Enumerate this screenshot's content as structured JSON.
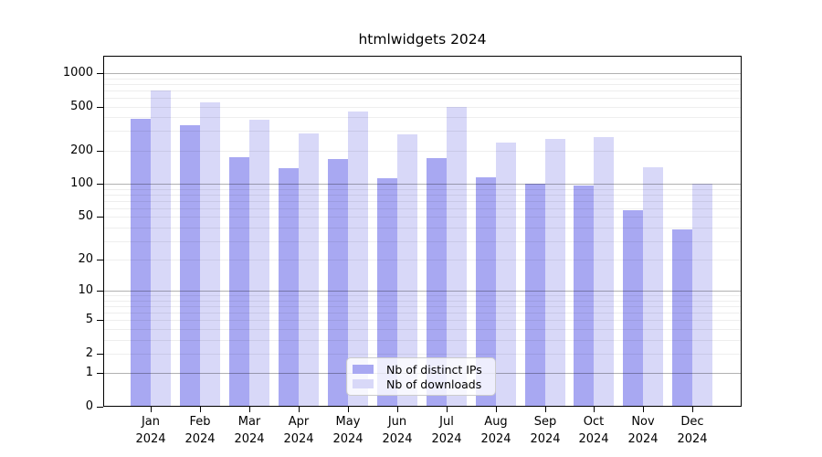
{
  "page": {
    "background": "#ffffff"
  },
  "chart_data": {
    "type": "bar",
    "title": "htmlwidgets 2024",
    "categories": [
      "Jan",
      "Feb",
      "Mar",
      "Apr",
      "May",
      "Jun",
      "Jul",
      "Aug",
      "Sep",
      "Oct",
      "Nov",
      "Dec"
    ],
    "x_year": "2024",
    "series": [
      {
        "name": "Nb of distinct IPs",
        "color": "#a8a8f2",
        "values": [
          390,
          340,
          175,
          140,
          168,
          113,
          170,
          115,
          100,
          96,
          57,
          38
        ]
      },
      {
        "name": "Nb of downloads",
        "color": "#d8d8f8",
        "values": [
          700,
          550,
          380,
          285,
          450,
          280,
          500,
          235,
          255,
          265,
          142,
          101
        ]
      }
    ],
    "y_ticks": [
      0,
      1,
      2,
      5,
      10,
      20,
      50,
      100,
      200,
      500,
      1000
    ],
    "y_scale": "log10(value+1)",
    "ylim": [
      0,
      1100
    ],
    "grid": true,
    "gridline_major_values": [
      1,
      10,
      100,
      1000
    ],
    "legend_position": "bottom-center",
    "axis_color": "#000000"
  }
}
